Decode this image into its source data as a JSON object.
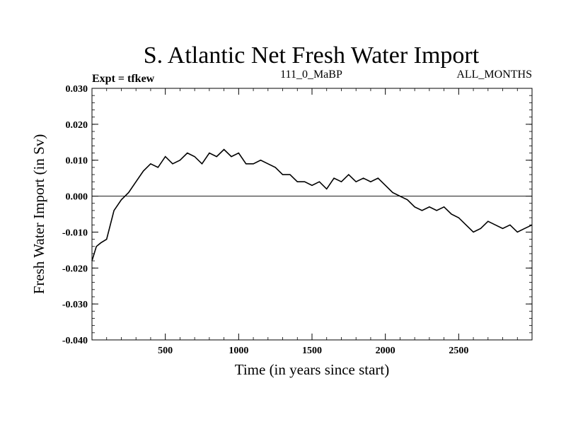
{
  "chart_data": {
    "type": "line",
    "title": "S. Atlantic Net Fresh Water Import",
    "subtitle_left": "Expt = tfkew",
    "subtitle_center": "111_0_MaBP",
    "subtitle_right": "ALL_MONTHS",
    "xlabel": "Time (in years since start)",
    "ylabel": "Fresh Water Import (in Sv)",
    "xlim": [
      0,
      3000
    ],
    "ylim": [
      -0.04,
      0.03
    ],
    "xticks": [
      500,
      1000,
      1500,
      2000,
      2500
    ],
    "xtick_labels": [
      "500",
      "1000",
      "1500",
      "2000",
      "2500"
    ],
    "yticks": [
      0.03,
      0.02,
      0.01,
      0.0,
      -0.01,
      -0.02,
      -0.03,
      -0.04
    ],
    "ytick_labels": [
      "0.030",
      "0.020",
      "0.010",
      "0.000",
      "-0.010",
      "-0.020",
      "-0.030",
      "-0.040"
    ],
    "reference_line": 0.0,
    "line_color": "#000000",
    "grid": false,
    "series": [
      {
        "x": [
          0,
          30,
          60,
          100,
          150,
          200,
          250,
          300,
          350,
          400,
          450,
          500,
          550,
          600,
          650,
          700,
          750,
          800,
          850,
          900,
          950,
          1000,
          1050,
          1100,
          1150,
          1200,
          1250,
          1300,
          1350,
          1400,
          1450,
          1500,
          1550,
          1600,
          1650,
          1700,
          1750,
          1800,
          1850,
          1900,
          1950,
          2000,
          2050,
          2100,
          2150,
          2200,
          2250,
          2300,
          2350,
          2400,
          2450,
          2500,
          2550,
          2600,
          2650,
          2700,
          2750,
          2800,
          2850,
          2900,
          2950,
          3000
        ],
        "y": [
          -0.018,
          -0.014,
          -0.013,
          -0.012,
          -0.004,
          -0.001,
          0.001,
          0.004,
          0.007,
          0.009,
          0.008,
          0.011,
          0.009,
          0.01,
          0.012,
          0.011,
          0.009,
          0.012,
          0.011,
          0.013,
          0.011,
          0.012,
          0.009,
          0.009,
          0.01,
          0.009,
          0.008,
          0.006,
          0.006,
          0.004,
          0.004,
          0.003,
          0.004,
          0.002,
          0.005,
          0.004,
          0.006,
          0.004,
          0.005,
          0.004,
          0.005,
          0.003,
          0.001,
          0.0,
          -0.001,
          -0.003,
          -0.004,
          -0.003,
          -0.004,
          -0.003,
          -0.005,
          -0.006,
          -0.008,
          -0.01,
          -0.009,
          -0.007,
          -0.008,
          -0.009,
          -0.008,
          -0.01,
          -0.009,
          -0.008
        ]
      }
    ]
  }
}
